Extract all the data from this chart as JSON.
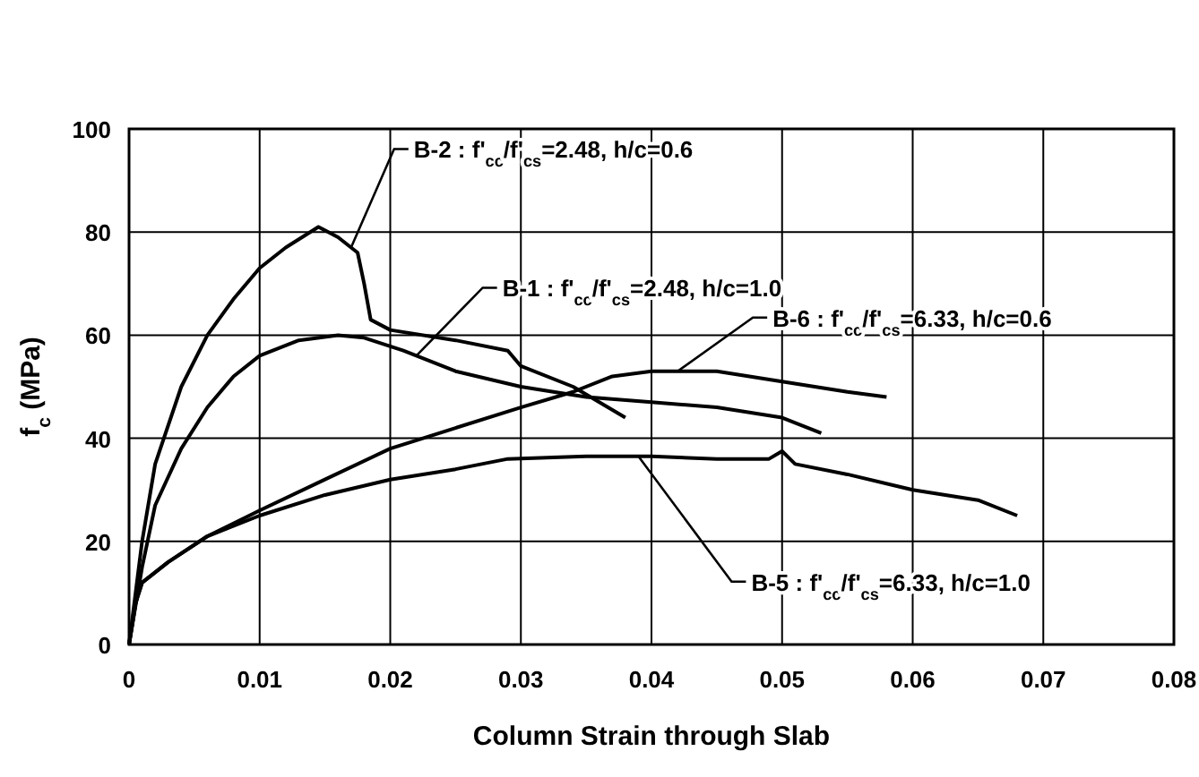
{
  "chart_data": {
    "type": "line",
    "xlabel": "Column Strain through Slab",
    "ylabel": "f$_{c}$ (MPa)",
    "xlim": [
      0,
      0.08
    ],
    "xticks": [
      0,
      0.01,
      0.02,
      0.03,
      0.04,
      0.05,
      0.06,
      0.07,
      0.08
    ],
    "ylim": [
      0,
      100
    ],
    "yticks": [
      0,
      20,
      40,
      60,
      80,
      100
    ],
    "grid": true,
    "marker": "none",
    "line_style": "solid",
    "series": [
      {
        "color": "#000000",
        "x": [
          0,
          0.001,
          0.002,
          0.004,
          0.006,
          0.008,
          0.01,
          0.012,
          0.0145,
          0.016,
          0.0175,
          0.018,
          0.0185,
          0.02,
          0.025,
          0.029,
          0.03,
          0.034,
          0.038
        ],
        "values": [
          0,
          20,
          35,
          50,
          60,
          67,
          73,
          77,
          81,
          79,
          76,
          70,
          63,
          61,
          59,
          57,
          54,
          50,
          44
        ]
      },
      {
        "color": "#000000",
        "x": [
          0,
          0.001,
          0.002,
          0.004,
          0.006,
          0.008,
          0.01,
          0.013,
          0.016,
          0.018,
          0.021,
          0.025,
          0.03,
          0.035,
          0.04,
          0.045,
          0.05,
          0.053
        ],
        "values": [
          0,
          15,
          27,
          38,
          46,
          52,
          56,
          59,
          60,
          59.5,
          57,
          53,
          50,
          48,
          47,
          46,
          44,
          41
        ]
      },
      {
        "color": "#000000",
        "x": [
          0,
          0.0005,
          0.001,
          0.003,
          0.006,
          0.01,
          0.015,
          0.02,
          0.025,
          0.03,
          0.034,
          0.037,
          0.04,
          0.045,
          0.05,
          0.055,
          0.058
        ],
        "values": [
          0,
          8,
          12,
          16,
          21,
          26,
          32,
          38,
          42,
          46,
          49,
          52,
          53,
          53,
          51,
          49,
          48
        ]
      },
      {
        "color": "#000000",
        "x": [
          0,
          0.0005,
          0.001,
          0.003,
          0.006,
          0.01,
          0.015,
          0.02,
          0.025,
          0.029,
          0.035,
          0.04,
          0.045,
          0.049,
          0.05,
          0.051,
          0.055,
          0.06,
          0.065,
          0.068
        ],
        "values": [
          0,
          8,
          12,
          16,
          21,
          25,
          29,
          32,
          34,
          36,
          36.5,
          36.5,
          36,
          36,
          37.5,
          35,
          33,
          30,
          28,
          25
        ]
      }
    ],
    "annotations": [
      {
        "text": "B-2 : f'$_{cc}$/f'$_{cs}$=2.48, h/c=0.6",
        "x": 0.017,
        "y": 77
      },
      {
        "text": "B-1 : f'$_{cc}$/f'$_{cs}$=2.48, h/c=1.0",
        "x": 0.022,
        "y": 56
      },
      {
        "text": "B-6 : f'$_{cc}$/f'$_{cs}$=6.33, h/c=0.6",
        "x": 0.042,
        "y": 53
      },
      {
        "text": "B-5 : f'$_{cc}$/f'$_{cs}$=6.33, h/c=1.0",
        "x": 0.039,
        "y": 36.5
      }
    ]
  }
}
